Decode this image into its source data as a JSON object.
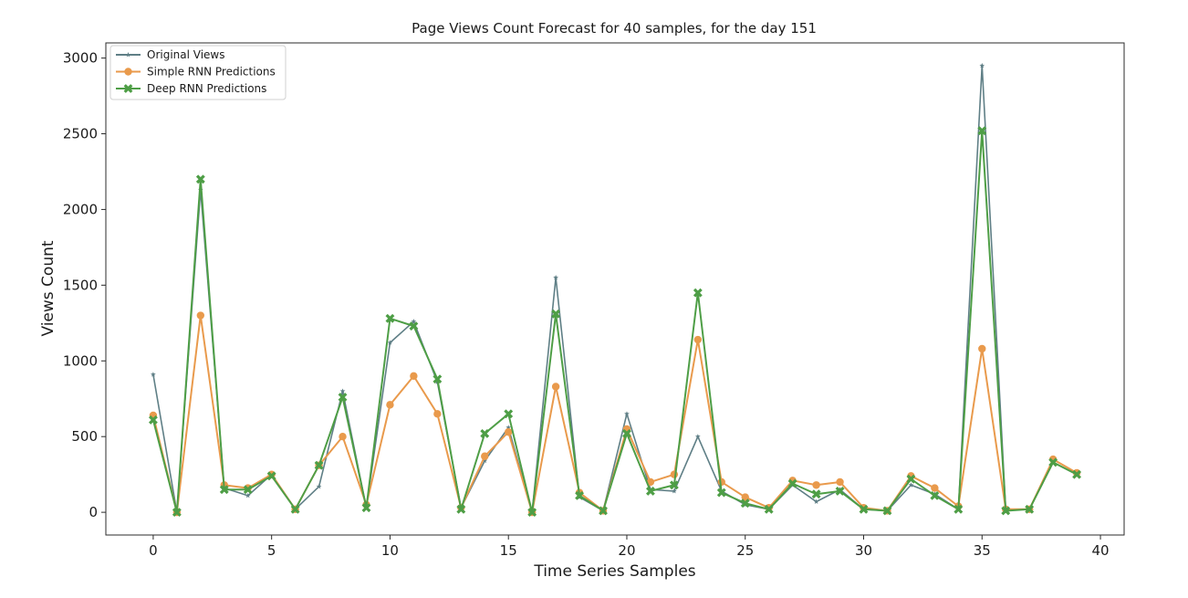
{
  "chart_data": {
    "type": "line",
    "title": "Page Views Count Forecast for 40 samples, for the day 151",
    "xlabel": "Time Series Samples",
    "ylabel": "Views Count",
    "xlim": [
      -2,
      41
    ],
    "ylim": [
      -150,
      3100
    ],
    "xticks": [
      0,
      5,
      10,
      15,
      20,
      25,
      30,
      35,
      40
    ],
    "yticks": [
      0,
      500,
      1000,
      1500,
      2000,
      2500,
      3000
    ],
    "grid": false,
    "legend_position": "top-left",
    "x": [
      0,
      1,
      2,
      3,
      4,
      5,
      6,
      7,
      8,
      9,
      10,
      11,
      12,
      13,
      14,
      15,
      16,
      17,
      18,
      19,
      20,
      21,
      22,
      23,
      24,
      25,
      26,
      27,
      28,
      29,
      30,
      31,
      32,
      33,
      34,
      35,
      36,
      37,
      38,
      39
    ],
    "series": [
      {
        "name": "Original Views",
        "color": "#5f7f86",
        "marker": "star",
        "values": [
          910,
          0,
          2130,
          160,
          110,
          250,
          20,
          170,
          800,
          30,
          1120,
          1260,
          860,
          30,
          340,
          560,
          0,
          1550,
          100,
          10,
          650,
          150,
          140,
          500,
          140,
          50,
          20,
          180,
          70,
          150,
          20,
          10,
          180,
          120,
          20,
          2950,
          20,
          20,
          330,
          250
        ]
      },
      {
        "name": "Simple RNN Predictions",
        "color": "#e99a4c",
        "marker": "circle",
        "values": [
          640,
          0,
          1300,
          180,
          160,
          250,
          20,
          310,
          500,
          50,
          710,
          900,
          650,
          30,
          370,
          530,
          0,
          830,
          130,
          10,
          550,
          200,
          250,
          1140,
          200,
          100,
          30,
          210,
          180,
          200,
          30,
          10,
          240,
          160,
          40,
          1080,
          20,
          20,
          350,
          260
        ]
      },
      {
        "name": "Deep RNN Predictions",
        "color": "#4e9e46",
        "marker": "x",
        "values": [
          610,
          0,
          2200,
          150,
          150,
          240,
          20,
          310,
          760,
          30,
          1280,
          1230,
          880,
          20,
          520,
          650,
          0,
          1310,
          110,
          10,
          520,
          140,
          180,
          1450,
          130,
          60,
          20,
          190,
          120,
          140,
          20,
          10,
          220,
          110,
          20,
          2520,
          10,
          20,
          330,
          250
        ]
      }
    ]
  }
}
